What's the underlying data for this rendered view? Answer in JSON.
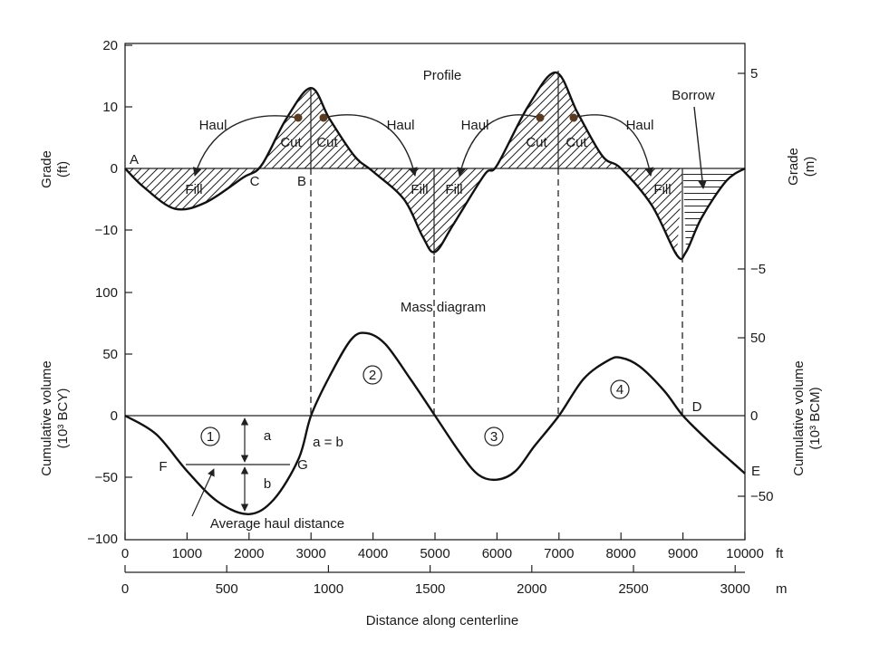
{
  "profile": {
    "title": "Profile",
    "left_axis": {
      "title_line1": "Grade",
      "title_line2": "(ft)",
      "ticks": [
        "20",
        "10",
        "0",
        "−10"
      ]
    },
    "right_axis": {
      "title_line1": "Grade",
      "title_line2": "(m)",
      "ticks": [
        "5",
        "−5"
      ]
    },
    "labels": {
      "haul": "Haul",
      "cut": "Cut",
      "fill": "Fill",
      "borrow": "Borrow",
      "A": "A",
      "B": "B",
      "C": "C"
    },
    "grade_ft_points": [
      [
        0,
        0
      ],
      [
        300,
        -3
      ],
      [
        800,
        -6.5
      ],
      [
        1300,
        -5.5
      ],
      [
        1900,
        -1.5
      ],
      [
        2200,
        0.5
      ],
      [
        2600,
        8
      ],
      [
        3000,
        13
      ],
      [
        3300,
        8
      ],
      [
        3700,
        2
      ],
      [
        4000,
        -0.5
      ],
      [
        4500,
        -5
      ],
      [
        4800,
        -11
      ],
      [
        5000,
        -13.5
      ],
      [
        5300,
        -9
      ],
      [
        5800,
        -1
      ],
      [
        6000,
        0.5
      ],
      [
        6500,
        10
      ],
      [
        6950,
        15.5
      ],
      [
        7300,
        9
      ],
      [
        7700,
        2
      ],
      [
        8000,
        0
      ],
      [
        8500,
        -6
      ],
      [
        8900,
        -14
      ],
      [
        9050,
        -13.5
      ],
      [
        9300,
        -8
      ],
      [
        9700,
        -2
      ],
      [
        10000,
        0
      ]
    ]
  },
  "mass": {
    "title": "Mass diagram",
    "left_axis": {
      "title_line1": "Cumulative volume",
      "title_line2": "(10³ BCY)",
      "ticks": [
        "100",
        "50",
        "0",
        "−50",
        "−100"
      ]
    },
    "right_axis": {
      "title_line1": "Cumulative volume",
      "title_line2": "(10³ BCM)",
      "ticks": [
        "50",
        "0",
        "−50"
      ]
    },
    "labels": {
      "a": "a",
      "b": "b",
      "a_eq_b": "a = b",
      "F": "F",
      "G": "G",
      "D": "D",
      "E": "E",
      "average_haul": "Average haul distance",
      "n1": "1",
      "n2": "2",
      "n3": "3",
      "n4": "4"
    },
    "volume_bcy_points": [
      [
        0,
        0
      ],
      [
        500,
        -15
      ],
      [
        1000,
        -45
      ],
      [
        1500,
        -70
      ],
      [
        2000,
        -80
      ],
      [
        2400,
        -68
      ],
      [
        2800,
        -35
      ],
      [
        3000,
        0
      ],
      [
        3300,
        32
      ],
      [
        3650,
        62
      ],
      [
        3900,
        67
      ],
      [
        4200,
        58
      ],
      [
        4600,
        30
      ],
      [
        5000,
        0
      ],
      [
        5400,
        -30
      ],
      [
        5700,
        -48
      ],
      [
        6000,
        -52
      ],
      [
        6300,
        -45
      ],
      [
        6600,
        -25
      ],
      [
        7000,
        0
      ],
      [
        7400,
        30
      ],
      [
        7800,
        45
      ],
      [
        8000,
        47
      ],
      [
        8300,
        40
      ],
      [
        8700,
        20
      ],
      [
        9000,
        0
      ],
      [
        9400,
        -20
      ],
      [
        9800,
        -38
      ],
      [
        10000,
        -47
      ]
    ]
  },
  "x_axis_ft": {
    "unit": "ft",
    "ticks": [
      "0",
      "1000",
      "2000",
      "3000",
      "4000",
      "5000",
      "6000",
      "7000",
      "8000",
      "9000",
      "10000"
    ]
  },
  "x_axis_m": {
    "unit": "m",
    "ticks": [
      "0",
      "500",
      "1000",
      "1500",
      "2000",
      "2500",
      "3000"
    ]
  },
  "x_title": "Distance along centerline"
}
